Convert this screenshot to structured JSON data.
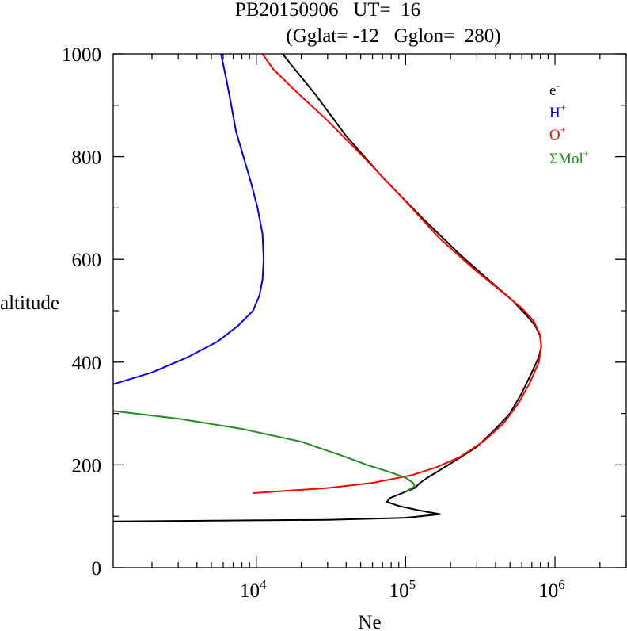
{
  "chart_data": {
    "type": "line",
    "title_line1": "PB20150906   UT=  16",
    "title_line2": "(Gglat= -12   Gglon=  280)",
    "xlabel": "Ne",
    "ylabel": "altitude",
    "xscale": "log",
    "xlim": [
      1100,
      3000000
    ],
    "ylim": [
      0,
      1000
    ],
    "x_ticks": [
      {
        "value": 10000,
        "base": "10",
        "exp": "4"
      },
      {
        "value": 100000,
        "base": "10",
        "exp": "5"
      },
      {
        "value": 1000000,
        "base": "10",
        "exp": "6"
      }
    ],
    "y_ticks": [
      {
        "value": 0,
        "label": "0"
      },
      {
        "value": 200,
        "label": "200"
      },
      {
        "value": 400,
        "label": "400"
      },
      {
        "value": 600,
        "label": "600"
      },
      {
        "value": 800,
        "label": "800"
      },
      {
        "value": 1000,
        "label": "1000"
      }
    ],
    "legend_position": "top-right",
    "series": [
      {
        "name": "e-",
        "label_base": "e",
        "label_sup": "-",
        "color": "#000000",
        "points": [
          [
            1100,
            90
          ],
          [
            30000,
            93
          ],
          [
            100000,
            97
          ],
          [
            125000,
            100
          ],
          [
            170000,
            104
          ],
          [
            120000,
            112
          ],
          [
            90000,
            120
          ],
          [
            75000,
            128
          ],
          [
            78000,
            135
          ],
          [
            95000,
            145
          ],
          [
            115000,
            155
          ],
          [
            125000,
            165
          ],
          [
            140000,
            175
          ],
          [
            170000,
            190
          ],
          [
            220000,
            210
          ],
          [
            300000,
            235
          ],
          [
            400000,
            270
          ],
          [
            500000,
            300
          ],
          [
            600000,
            340
          ],
          [
            700000,
            380
          ],
          [
            780000,
            410
          ],
          [
            810000,
            430
          ],
          [
            800000,
            450
          ],
          [
            740000,
            470
          ],
          [
            650000,
            490
          ],
          [
            520000,
            520
          ],
          [
            360000,
            560
          ],
          [
            230000,
            610
          ],
          [
            130000,
            680
          ],
          [
            70000,
            760
          ],
          [
            40000,
            840
          ],
          [
            25000,
            920
          ],
          [
            17000,
            980
          ],
          [
            15000,
            1000
          ]
        ]
      },
      {
        "name": "H+",
        "label_base": "H",
        "label_sup": "+",
        "color": "#0000ee",
        "points": [
          [
            1100,
            357
          ],
          [
            2000,
            380
          ],
          [
            3500,
            410
          ],
          [
            5500,
            440
          ],
          [
            7500,
            470
          ],
          [
            9500,
            500
          ],
          [
            10500,
            530
          ],
          [
            11000,
            560
          ],
          [
            11200,
            600
          ],
          [
            11000,
            650
          ],
          [
            10200,
            700
          ],
          [
            9200,
            750
          ],
          [
            8200,
            800
          ],
          [
            7300,
            850
          ],
          [
            6800,
            900
          ],
          [
            6300,
            950
          ],
          [
            5800,
            1000
          ]
        ]
      },
      {
        "name": "O+",
        "label_base": "O",
        "label_sup": "+",
        "color": "#ff0000",
        "points": [
          [
            9500,
            145
          ],
          [
            30000,
            155
          ],
          [
            60000,
            165
          ],
          [
            110000,
            180
          ],
          [
            160000,
            195
          ],
          [
            230000,
            215
          ],
          [
            330000,
            245
          ],
          [
            450000,
            280
          ],
          [
            570000,
            320
          ],
          [
            680000,
            360
          ],
          [
            780000,
            400
          ],
          [
            810000,
            430
          ],
          [
            790000,
            455
          ],
          [
            720000,
            480
          ],
          [
            600000,
            505
          ],
          [
            450000,
            535
          ],
          [
            290000,
            580
          ],
          [
            170000,
            640
          ],
          [
            95000,
            720
          ],
          [
            52000,
            800
          ],
          [
            30000,
            870
          ],
          [
            18000,
            930
          ],
          [
            13000,
            970
          ],
          [
            11000,
            1000
          ]
        ]
      },
      {
        "name": "ΣMol+",
        "label_base": "ΣMol",
        "label_sup": "+",
        "color": "#228b22",
        "points": [
          [
            1100,
            305
          ],
          [
            3000,
            290
          ],
          [
            8000,
            270
          ],
          [
            20000,
            245
          ],
          [
            40000,
            215
          ],
          [
            55000,
            200
          ],
          [
            80000,
            185
          ],
          [
            100000,
            175
          ],
          [
            112000,
            165
          ],
          [
            115000,
            158
          ],
          [
            100000,
            148
          ]
        ]
      }
    ]
  }
}
